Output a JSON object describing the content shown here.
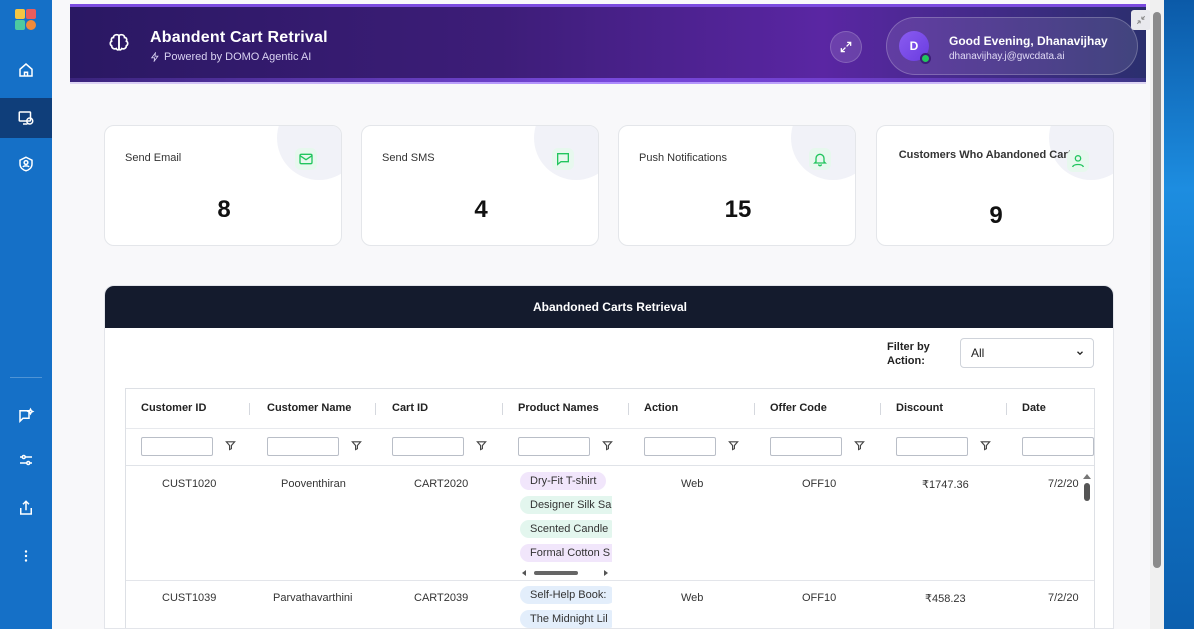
{
  "header": {
    "title": "Abandent Cart Retrival",
    "subtitle": "Powered by DOMO Agentic AI",
    "user": {
      "initial": "D",
      "greeting": "Good Evening, Dhanavijhay",
      "email": "dhanavijhay.j@gwcdata.ai"
    }
  },
  "rail": {
    "items": [
      "home-icon",
      "agent-dashboard-icon",
      "shield-user-icon",
      "ai-chat-icon",
      "sliders-icon",
      "share-icon",
      "more-icon"
    ]
  },
  "stats": [
    {
      "label": "Send Email",
      "value": "8",
      "icon": "mail-icon"
    },
    {
      "label": "Send SMS",
      "value": "4",
      "icon": "chat-icon"
    },
    {
      "label": "Push Notifications",
      "value": "15",
      "icon": "bell-icon"
    },
    {
      "label": "Customers Who Abandoned Cart",
      "value": "9",
      "icon": "user-icon"
    }
  ],
  "table": {
    "title": "Abandoned Carts Retrieval",
    "filter_label": "Filter by Action:",
    "filter_value": "All",
    "columns": [
      "Customer ID",
      "Customer Name",
      "Cart ID",
      "Product Names",
      "Action",
      "Offer Code",
      "Discount",
      "Date"
    ],
    "rows": [
      {
        "customer_id": "CUST1020",
        "customer_name": "Pooventhiran",
        "cart_id": "CART2020",
        "products": [
          "Dry-Fit T-shirt",
          "Designer Silk Sa",
          "Scented Candle",
          "Formal Cotton S"
        ],
        "action": "Web",
        "offer_code": "OFF10",
        "discount": "₹1747.36",
        "date": "7/2/20"
      },
      {
        "customer_id": "CUST1039",
        "customer_name": "Parvathavarthini",
        "cart_id": "CART2039",
        "products": [
          "Self-Help Book:",
          "The Midnight Lil"
        ],
        "action": "Web",
        "offer_code": "OFF10",
        "discount": "₹458.23",
        "date": "7/2/20"
      }
    ]
  },
  "colors": {
    "rail": "#1570c7",
    "header_start": "#2a1863",
    "header_mid": "#5a26a3",
    "table_header": "#141b2d",
    "icon_green": "#22c55e"
  }
}
